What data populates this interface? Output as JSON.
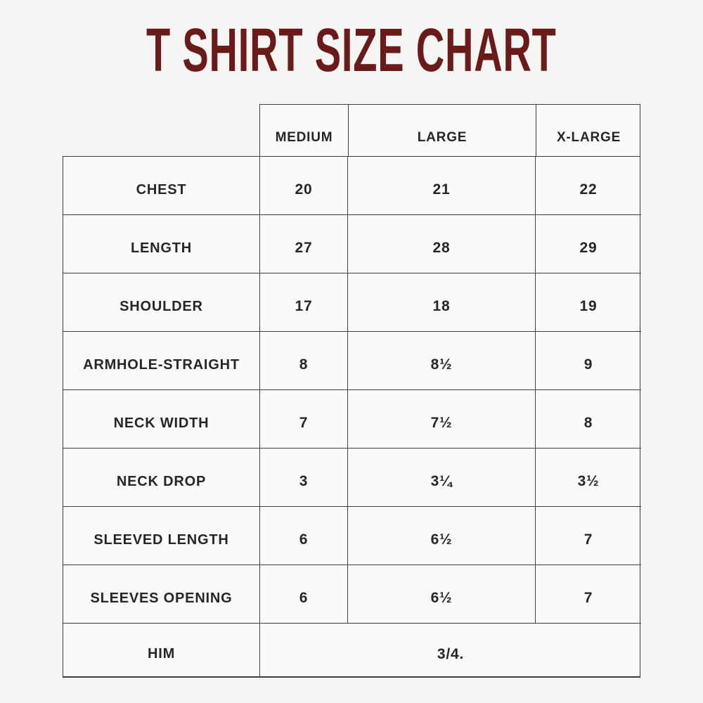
{
  "title": "T SHIRT SIZE CHART",
  "theme": {
    "title_color": "#6b1a1a",
    "page_background": "#f5f5f3",
    "cell_background": "#fafaf8",
    "border_color": "#3e3e3e",
    "text_color": "#262626"
  },
  "chart_data": {
    "type": "table",
    "title": "T SHIRT SIZE CHART",
    "columns": [
      "",
      "MEDIUM",
      "LARGE",
      "X-LARGE"
    ],
    "rows": [
      [
        "CHEST",
        "20",
        "21",
        "22"
      ],
      [
        "LENGTH",
        "27",
        "28",
        "29"
      ],
      [
        "SHOULDER",
        "17",
        "18",
        "19"
      ],
      [
        "ARMHOLE-STRAIGHT",
        "8",
        "8½",
        "9"
      ],
      [
        "NECK WIDTH",
        "7",
        "7½",
        "8"
      ],
      [
        "NECK DROP",
        "3",
        "3¼",
        "3½"
      ],
      [
        "SLEEVED LENGTH",
        "6",
        "6½",
        "7"
      ],
      [
        "SLEEVES OPENING",
        "6",
        "6½",
        "7"
      ]
    ],
    "spanning_row": {
      "label": "HIM",
      "value": "3/4."
    },
    "layout": {
      "grid": true,
      "header_over_value_columns_only": true,
      "last_row_value_spans_all_size_columns": true
    }
  }
}
